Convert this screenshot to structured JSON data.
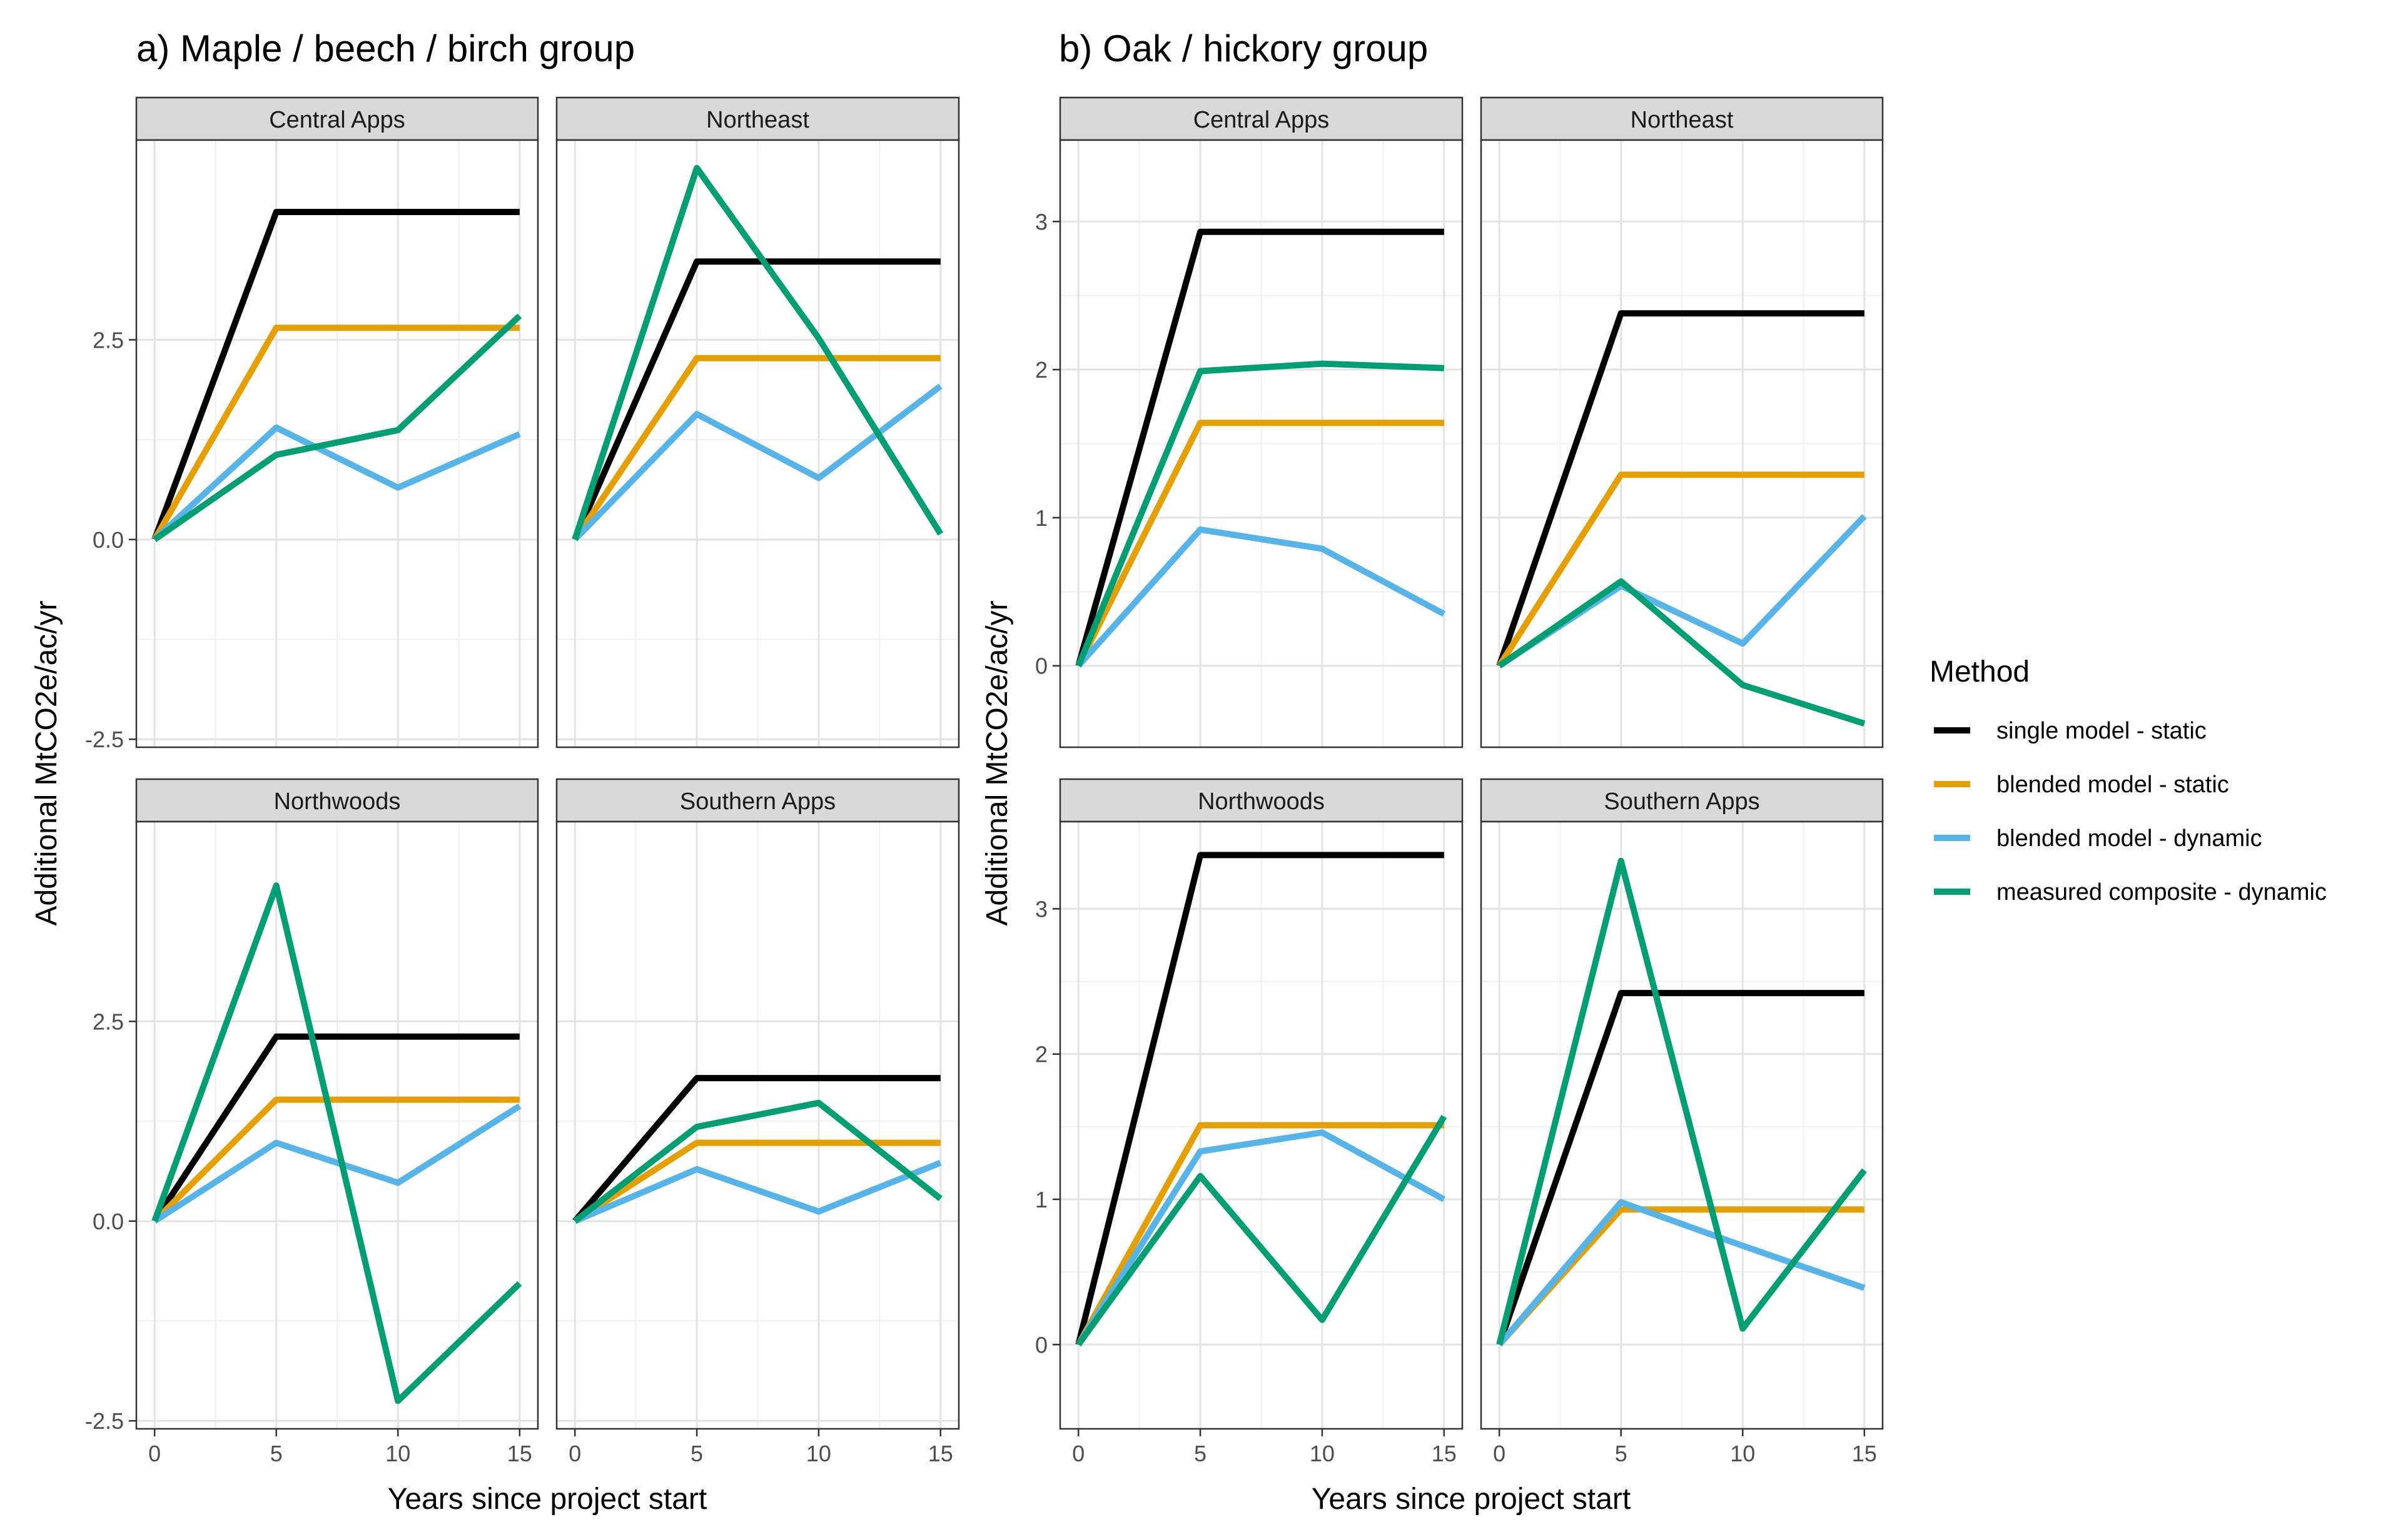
{
  "legend": {
    "title": "Method",
    "placement": "right",
    "entries": [
      {
        "key": "single",
        "label": "single model - static",
        "color": "#000000"
      },
      {
        "key": "blended_static",
        "label": "blended model - static",
        "color": "#E69F00"
      },
      {
        "key": "blended_dynamic",
        "label": "blended model - dynamic",
        "color": "#56B4E9"
      },
      {
        "key": "measured",
        "label": "measured composite - dynamic",
        "color": "#009E73"
      }
    ]
  },
  "chart_data": [
    {
      "type": "line",
      "title": "a) Maple / beech / birch group",
      "xlabel": "Years since project start",
      "ylabel": "Additional MtCO2e/ac/yr",
      "xlim": [
        -0.75,
        15.75
      ],
      "x_ticks": [
        0,
        5,
        10,
        15
      ],
      "ylim": [
        -2.6,
        5.0
      ],
      "y_ticks": [
        -2.5,
        0.0,
        2.5
      ],
      "y_tick_labels": [
        "-2.5",
        "0.0",
        "2.5"
      ],
      "grid": true,
      "x": [
        0,
        5,
        10,
        15
      ],
      "panels": [
        {
          "name": "Central Apps",
          "series": [
            {
              "key": "single",
              "values": [
                0,
                4.1,
                4.1,
                4.1
              ]
            },
            {
              "key": "blended_static",
              "values": [
                0,
                2.65,
                2.65,
                2.65
              ]
            },
            {
              "key": "blended_dynamic",
              "values": [
                0,
                1.4,
                0.65,
                1.32
              ]
            },
            {
              "key": "measured",
              "values": [
                0,
                1.06,
                1.37,
                2.8
              ]
            }
          ]
        },
        {
          "name": "Northeast",
          "series": [
            {
              "key": "single",
              "values": [
                0,
                3.48,
                3.48,
                3.48
              ]
            },
            {
              "key": "blended_static",
              "values": [
                0,
                2.27,
                2.27,
                2.27
              ]
            },
            {
              "key": "blended_dynamic",
              "values": [
                0,
                1.57,
                0.77,
                1.92
              ]
            },
            {
              "key": "measured",
              "values": [
                0,
                4.65,
                2.52,
                0.07
              ]
            }
          ]
        },
        {
          "name": "Northwoods",
          "series": [
            {
              "key": "single",
              "values": [
                0,
                2.31,
                2.31,
                2.31
              ]
            },
            {
              "key": "blended_static",
              "values": [
                0,
                1.52,
                1.52,
                1.52
              ]
            },
            {
              "key": "blended_dynamic",
              "values": [
                0,
                0.98,
                0.48,
                1.44
              ]
            },
            {
              "key": "measured",
              "values": [
                0,
                4.2,
                -2.25,
                -0.78
              ]
            }
          ]
        },
        {
          "name": "Southern Apps",
          "series": [
            {
              "key": "single",
              "values": [
                0,
                1.79,
                1.79,
                1.79
              ]
            },
            {
              "key": "blended_static",
              "values": [
                0,
                0.98,
                0.98,
                0.98
              ]
            },
            {
              "key": "blended_dynamic",
              "values": [
                0,
                0.65,
                0.12,
                0.73
              ]
            },
            {
              "key": "measured",
              "values": [
                0,
                1.18,
                1.48,
                0.28
              ]
            }
          ]
        }
      ]
    },
    {
      "type": "line",
      "title": "b) Oak / hickory group",
      "xlabel": "Years since project start",
      "ylabel": "Additional MtCO2e/ac/yr",
      "xlim": [
        -0.75,
        15.75
      ],
      "x_ticks": [
        0,
        5,
        10,
        15
      ],
      "top_ylim": [
        -0.55,
        3.55
      ],
      "top_y_ticks": [
        0,
        1,
        2,
        3
      ],
      "bottom_ylim": [
        -0.58,
        3.6
      ],
      "bottom_y_ticks": [
        0,
        1,
        2,
        3
      ],
      "grid": true,
      "x": [
        0,
        5,
        10,
        15
      ],
      "panels": [
        {
          "name": "Central Apps",
          "series": [
            {
              "key": "single",
              "values": [
                0,
                2.93,
                2.93,
                2.93
              ]
            },
            {
              "key": "blended_static",
              "values": [
                0,
                1.64,
                1.64,
                1.64
              ]
            },
            {
              "key": "blended_dynamic",
              "values": [
                0,
                0.92,
                0.79,
                0.35
              ]
            },
            {
              "key": "measured",
              "values": [
                0,
                1.99,
                2.04,
                2.01
              ]
            }
          ]
        },
        {
          "name": "Northeast",
          "series": [
            {
              "key": "single",
              "values": [
                0,
                2.38,
                2.38,
                2.38
              ]
            },
            {
              "key": "blended_static",
              "values": [
                0,
                1.29,
                1.29,
                1.29
              ]
            },
            {
              "key": "blended_dynamic",
              "values": [
                0,
                0.54,
                0.15,
                1.01
              ]
            },
            {
              "key": "measured",
              "values": [
                0,
                0.57,
                -0.13,
                -0.39
              ]
            }
          ]
        },
        {
          "name": "Northwoods",
          "series": [
            {
              "key": "single",
              "values": [
                0,
                3.37,
                3.37,
                3.37
              ]
            },
            {
              "key": "blended_static",
              "values": [
                0,
                1.51,
                1.51,
                1.51
              ]
            },
            {
              "key": "blended_dynamic",
              "values": [
                0,
                1.33,
                1.46,
                1.0
              ]
            },
            {
              "key": "measured",
              "values": [
                0,
                1.16,
                0.17,
                1.57
              ]
            }
          ]
        },
        {
          "name": "Southern Apps",
          "series": [
            {
              "key": "single",
              "values": [
                0,
                2.42,
                2.42,
                2.42
              ]
            },
            {
              "key": "blended_static",
              "values": [
                0,
                0.93,
                0.93,
                0.93
              ]
            },
            {
              "key": "blended_dynamic",
              "values": [
                0,
                0.98,
                0.68,
                0.39
              ]
            },
            {
              "key": "measured",
              "values": [
                0,
                3.33,
                0.11,
                1.2
              ]
            }
          ]
        }
      ]
    }
  ]
}
